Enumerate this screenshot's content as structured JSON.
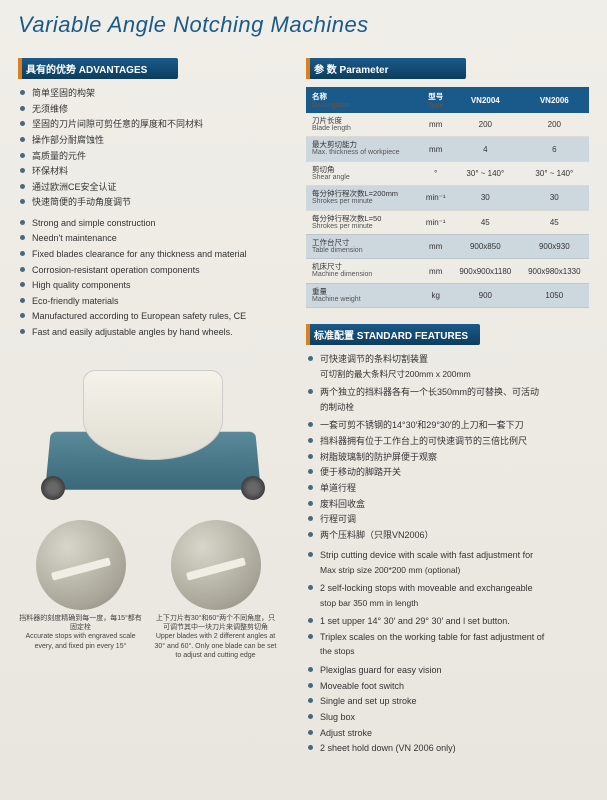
{
  "title": "Variable Angle Notching Machines",
  "advantages": {
    "header": "具有的优势 ADVANTAGES",
    "items_cn": [
      "简单坚固的构架",
      "无须维修",
      "坚固的刀片间隙可剪任意的厚度和不同材料",
      "操作部分耐腐蚀性",
      "高质量的元件",
      "环保材料",
      "通过欧洲CE安全认证",
      "快速简便的手动角度调节"
    ],
    "items_en": [
      "Strong and simple construction",
      "Needn't maintenance",
      "Fixed blades clearance for any thickness and material",
      "Corrosion-resistant operation components",
      "High quality components",
      "Eco-friendly materials",
      "Manufactured according to European safety rules, CE",
      "Fast and easily adjustable angles by hand wheels."
    ]
  },
  "thumbs": [
    {
      "cn": "挡料器的刻度精确到每一度，每15°都有固定栓",
      "en": "Accurate stops with engraved scale every, and fixed pin every 15°"
    },
    {
      "cn": "上下刀片有30°和60°两个不同角度，只可调节其中一块刀片来调整剪切角",
      "en": "Upper blades with 2 different angles at 30° and 60°. Only one blade can be set to adjust and cutting edge"
    }
  ],
  "parameter": {
    "header": "参 数  Parameter",
    "columns": [
      {
        "cn": "名称",
        "en": "Description"
      },
      {
        "cn": "型号",
        "en": "Type"
      },
      {
        "label": "VN2004"
      },
      {
        "label": "VN2006"
      }
    ],
    "rows": [
      {
        "alt": false,
        "cn": "刀片长度",
        "en": "Blade length",
        "unit": "mm",
        "v1": "200",
        "v2": "200"
      },
      {
        "alt": true,
        "cn": "最大剪切能力",
        "en": "Max. thickness of workpiece",
        "unit": "mm",
        "v1": "4",
        "v2": "6"
      },
      {
        "alt": false,
        "cn": "剪切角",
        "en": "Shear angle",
        "unit": "°",
        "v1": "30° ~ 140°",
        "v2": "30° ~ 140°"
      },
      {
        "alt": true,
        "cn": "每分钟行程次数L=200mm",
        "en": "Shrokes per minute",
        "unit": "min⁻¹",
        "v1": "30",
        "v2": "30"
      },
      {
        "alt": false,
        "cn": "每分钟行程次数L=50",
        "en": "Shrokes per minute",
        "unit": "min⁻¹",
        "v1": "45",
        "v2": "45"
      },
      {
        "alt": true,
        "cn": "工作台尺寸",
        "en": "Table dimension",
        "unit": "mm",
        "v1": "900x850",
        "v2": "900x930"
      },
      {
        "alt": false,
        "cn": "机床尺寸",
        "en": "Machine dimension",
        "unit": "mm",
        "v1": "900x900x1180",
        "v2": "900x980x1330"
      },
      {
        "alt": true,
        "cn": "重量",
        "en": "Machine weight",
        "unit": "kg",
        "v1": "900",
        "v2": "1050"
      }
    ]
  },
  "features": {
    "header": "标准配置 STANDARD FEATURES",
    "items_cn": [
      "可快速调节的条料切割装置",
      "两个独立的挡料器各有一个长350mm的可替换、可活动",
      "一套可剪不锈钢的14°30′和29°30′的上刀和一套下刀",
      "挡料器拥有位于工作台上的可快速调节的三倍比例尺",
      "树脂玻璃制的防护屏便于观察",
      "便于移动的脚踏开关",
      "单道行程",
      "废料回收盒",
      "行程可调",
      "两个压料脚（只限VN2006）"
    ],
    "sub_cn": {
      "0": "可切割的最大条料尺寸200mm x 200mm",
      "1": "的制动栓"
    },
    "items_en": [
      "Strip cutting device with scale with fast adjustment for",
      "2 self-locking stops with moveable and exchangeable",
      "1 set upper 14° 30′ and 29° 30′ and l set button.",
      "Triplex scales on the working table for fast adjustment of",
      "Plexiglas guard for easy vision",
      "Moveable foot switch",
      "Single and set up stroke",
      "Slug box",
      "Adjust stroke",
      "2 sheet hold down (VN 2006 only)"
    ],
    "sub_en": {
      "0": "Max strip size 200*200 mm (optional)",
      "1": "stop bar 350 mm in length",
      "3": "the stops"
    }
  }
}
